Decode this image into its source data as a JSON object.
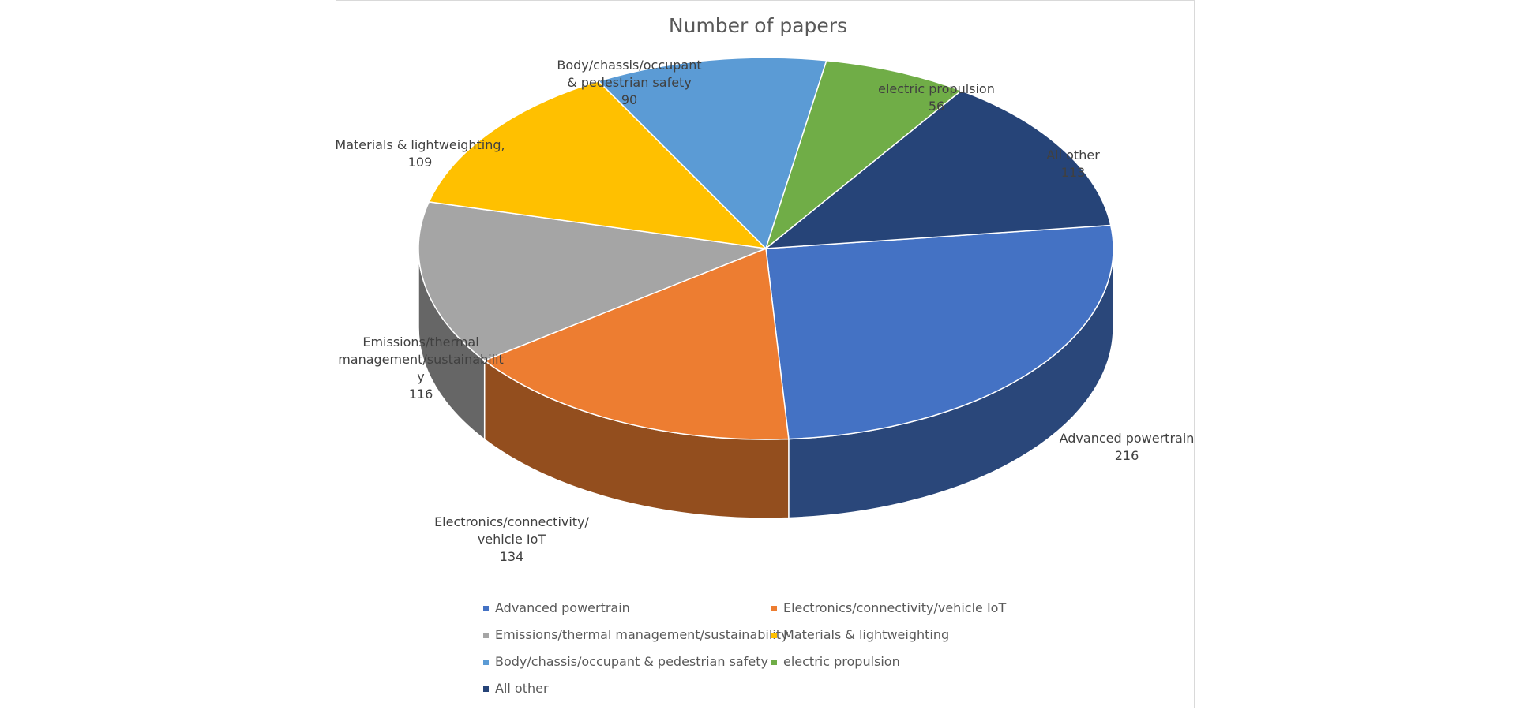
{
  "chart_data": {
    "type": "pie",
    "title": "Number of papers",
    "categories": [
      "Advanced powertrain",
      "Electronics/connectivity/vehicle IoT",
      "Emissions/thermal management/sustainability",
      "Materials & lightweighting",
      "Body/chassis/occupant & pedestrian safety",
      "electric propulsion",
      "All other"
    ],
    "label_texts": [
      "Advanced powertrain",
      "Electronics/connectivity/vehicle IoT",
      "Emissions/thermal management/sustainability",
      "Materials & lightweighting,",
      "Body/chassis/occupant & pedestrian safety",
      "electric propulsion",
      "All other"
    ],
    "values": [
      216,
      134,
      116,
      109,
      90,
      56,
      113
    ],
    "colors": [
      "#4472c4",
      "#ed7d31",
      "#a5a5a5",
      "#ffc000",
      "#5b9bd5",
      "#70ad47",
      "#264478"
    ],
    "legend": "bottom"
  }
}
